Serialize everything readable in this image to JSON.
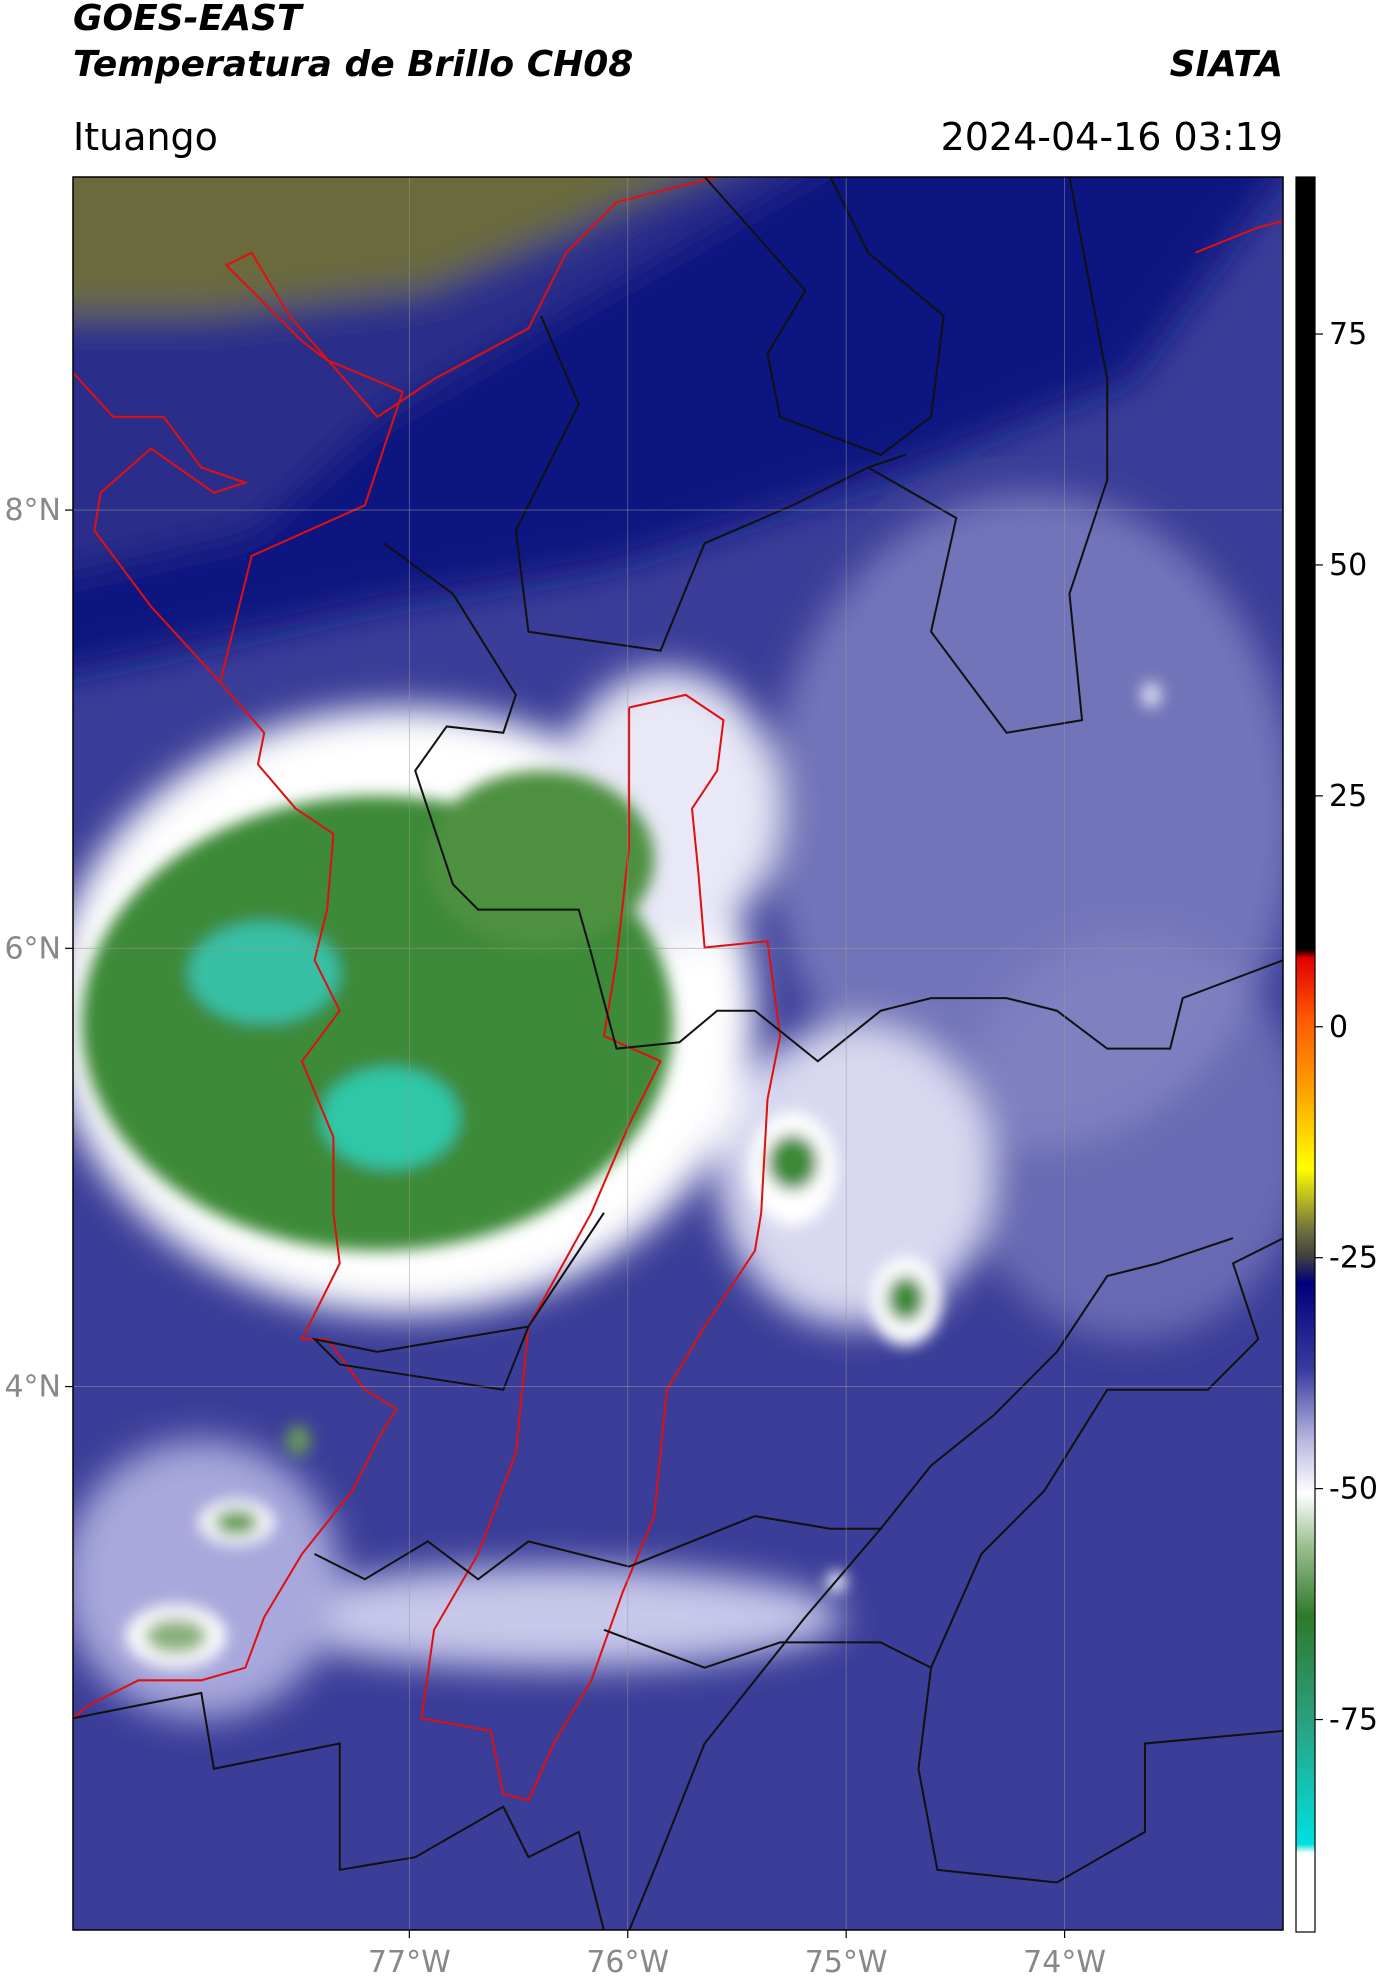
{
  "header": {
    "title": "GOES-EAST",
    "subtitle": "Temperatura de Brillo CH08",
    "source": "SIATA",
    "location": "Ituango",
    "datetime": "2024-04-16 03:19"
  },
  "map": {
    "lat_range": [
      1.52,
      9.52
    ],
    "lon_range": [
      -78.54,
      -73.0
    ],
    "grid": true,
    "lat_ticks": [
      {
        "value": 8,
        "label": "8°N"
      },
      {
        "value": 6,
        "label": "6°N"
      },
      {
        "value": 4,
        "label": "4°N"
      }
    ],
    "lon_ticks": [
      {
        "value": -77,
        "label": "77°W"
      },
      {
        "value": -76,
        "label": "76°W"
      },
      {
        "value": -75,
        "label": "75°W"
      },
      {
        "value": -74,
        "label": "74°W"
      }
    ]
  },
  "colorbar": {
    "range": [
      -98,
      92
    ],
    "ticks": [
      75,
      50,
      25,
      0,
      -25,
      -50,
      -75
    ]
  }
}
